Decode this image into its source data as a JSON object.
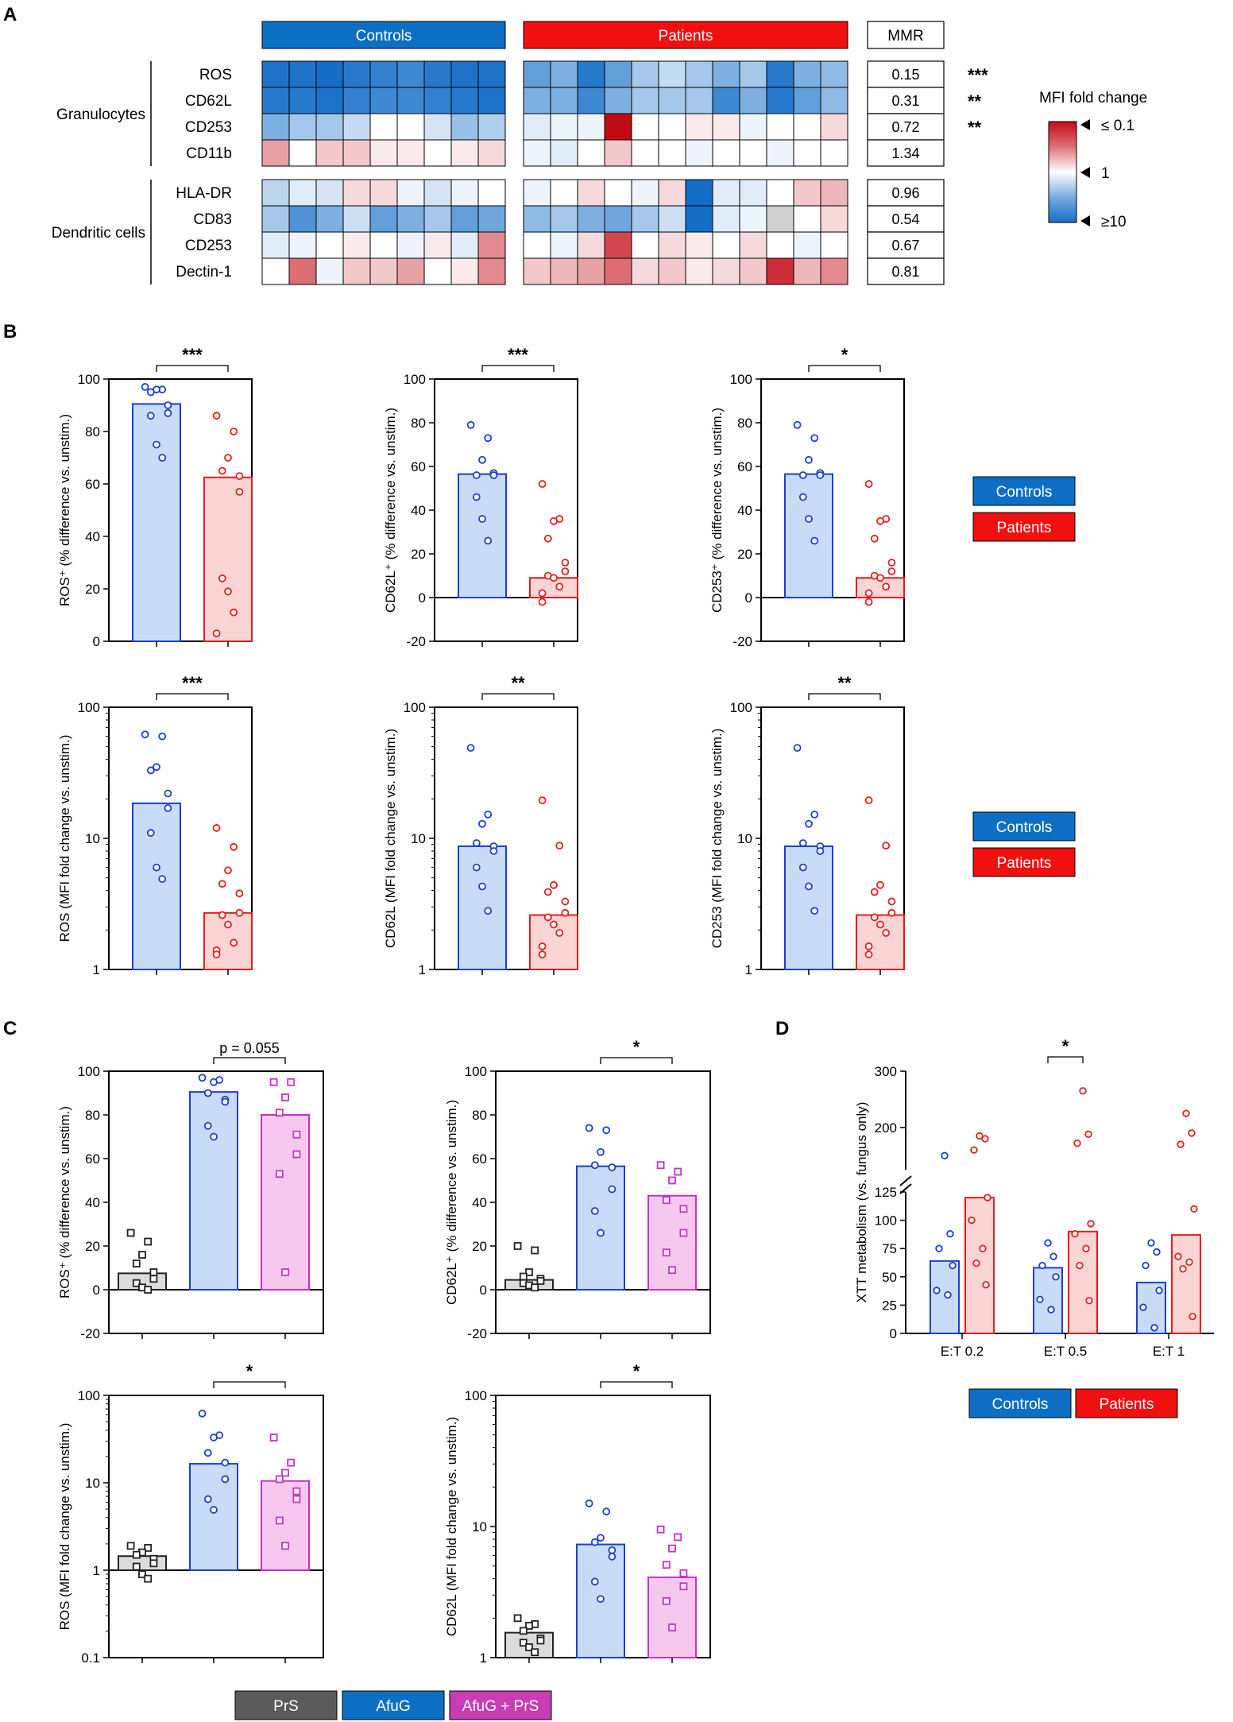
{
  "colors": {
    "controls": "#1a3fd6",
    "controls_fill": "#c9dcf7",
    "controls_label": "#0d6fc4",
    "patients": "#e01f1f",
    "patients_fill": "#fbd4d4",
    "patients_label": "#f01010",
    "prs": "#222222",
    "prs_fill": "#dcdcdc",
    "prs_label": "#5a5a5a",
    "afug_prs": "#c82ec8",
    "afug_prs_fill": "#f6c8ee",
    "afug_prs_label": "#c83cb4"
  },
  "panel_labels": [
    "A",
    "B",
    "C",
    "D"
  ],
  "heatmap": {
    "controls_label": "Controls",
    "patients_label": "Patients",
    "mmr_label": "MMR",
    "scale_title": "MFI fold change",
    "scale_labels": [
      "≤ 0.1",
      "1",
      "≥10"
    ],
    "groups": [
      {
        "name": "Granulocytes",
        "markers": [
          "ROS",
          "CD62L",
          "CD253",
          "CD11b"
        ],
        "mmr": [
          "0.15",
          "0.31",
          "0.72",
          "1.34"
        ],
        "sig": [
          "***",
          "**",
          "**",
          ""
        ]
      },
      {
        "name": "Dendritic cells",
        "markers": [
          "HLA-DR",
          "CD83",
          "CD253",
          "Dectin-1"
        ],
        "mmr": [
          "0.96",
          "0.54",
          "0.67",
          "0.81"
        ],
        "sig": [
          "",
          "",
          "",
          ""
        ]
      }
    ],
    "controls_values": [
      [
        9,
        9,
        10,
        8,
        7,
        6,
        8,
        9,
        9
      ],
      [
        8,
        8,
        9,
        7,
        6,
        6,
        7,
        8,
        9
      ],
      [
        3,
        2,
        2,
        1.5,
        1,
        1,
        1.3,
        2.3,
        1.8
      ],
      [
        0.5,
        1,
        0.7,
        0.7,
        0.9,
        0.9,
        1,
        0.9,
        0.8
      ],
      [
        1.6,
        1.2,
        1.3,
        0.8,
        0.8,
        1.1,
        1.3,
        1.1,
        1
      ],
      [
        2,
        5,
        3,
        1.4,
        4,
        3,
        2,
        4,
        3.5
      ],
      [
        1.2,
        1.1,
        1,
        0.9,
        1,
        1.1,
        0.9,
        1.2,
        0.4
      ],
      [
        1,
        0.3,
        1.1,
        0.7,
        0.7,
        0.5,
        1,
        0.9,
        0.4
      ]
    ],
    "patients_values": [
      [
        4,
        3,
        8,
        4,
        2,
        1.5,
        2,
        3,
        2,
        8,
        3,
        2.5
      ],
      [
        3,
        3,
        6,
        3,
        2,
        2,
        2,
        6,
        3,
        8,
        4,
        2.5
      ],
      [
        1.2,
        1.1,
        1.1,
        0.1,
        1,
        1,
        0.9,
        0.9,
        1.1,
        1,
        1,
        0.8
      ],
      [
        1.1,
        1.2,
        1,
        0.7,
        1,
        1,
        1.1,
        1,
        1,
        1.1,
        1,
        1
      ],
      [
        1.1,
        1,
        0.8,
        1,
        1.1,
        0.8,
        10,
        1.2,
        1.2,
        1,
        0.7,
        0.6
      ],
      [
        2.5,
        2,
        3,
        3.5,
        2,
        1.4,
        10,
        1.2,
        1.1,
        null,
        1,
        0.8
      ],
      [
        1,
        1.1,
        0.8,
        0.2,
        1,
        0.8,
        0.9,
        1,
        0.8,
        1,
        1.1,
        1
      ],
      [
        0.7,
        0.6,
        0.5,
        0.3,
        0.8,
        0.7,
        0.9,
        0.8,
        0.7,
        0.15,
        0.6,
        0.4
      ]
    ]
  },
  "legends": {
    "ctrl_pat": [
      "Controls",
      "Patients"
    ],
    "treatment": [
      "PrS",
      "AfuG",
      "AfuG + PrS"
    ]
  },
  "chart_data": [
    {
      "id": "B1",
      "type": "bar",
      "scale": "linear",
      "ylim": [
        0,
        100
      ],
      "yticks": [
        0,
        20,
        40,
        60,
        80,
        100
      ],
      "ylabel": "ROS⁺ (% difference vs. unstim.)",
      "categories": [
        "Controls",
        "Patients"
      ],
      "bars": [
        90.5,
        62.5
      ],
      "points": [
        [
          97,
          96,
          96,
          95,
          90,
          87,
          86,
          75,
          70
        ],
        [
          86,
          80,
          70,
          65,
          63,
          57,
          24,
          19,
          11,
          3
        ]
      ],
      "sig": "***"
    },
    {
      "id": "B2",
      "type": "bar",
      "scale": "linear",
      "ylim": [
        -20,
        100
      ],
      "yticks": [
        -20,
        0,
        20,
        40,
        60,
        80,
        100
      ],
      "ylabel": "CD62L⁺ (% difference vs. unstim.)",
      "categories": [
        "Controls",
        "Patients"
      ],
      "bars": [
        56.5,
        9
      ],
      "points": [
        [
          79,
          73,
          63,
          56,
          57,
          56,
          46,
          36,
          26
        ],
        [
          52,
          36,
          35,
          27,
          16,
          12,
          10,
          9,
          5,
          2,
          -2
        ]
      ],
      "sig": "***"
    },
    {
      "id": "B3",
      "type": "bar",
      "scale": "linear",
      "ylim": [
        -20,
        100
      ],
      "yticks": [
        -20,
        0,
        20,
        40,
        60,
        80,
        100
      ],
      "ylabel": "CD253⁺ (% difference vs. unstim.)",
      "categories": [
        "Controls",
        "Patients"
      ],
      "bars": [
        56.5,
        9
      ],
      "points": [
        [
          79,
          73,
          63,
          56,
          57,
          56,
          46,
          36,
          26
        ],
        [
          52,
          36,
          35,
          27,
          16,
          12,
          10,
          9,
          5,
          2,
          -2
        ]
      ],
      "sig": "*"
    },
    {
      "id": "B4",
      "type": "bar",
      "scale": "log",
      "ylim": [
        1,
        100
      ],
      "yticks": [
        1,
        10,
        100
      ],
      "ylabel": "ROS (MFI fold change vs. unstim.)",
      "categories": [
        "Controls",
        "Patients"
      ],
      "bars": [
        18.5,
        2.7
      ],
      "points": [
        [
          62,
          60,
          35,
          33,
          22,
          17,
          11,
          6,
          4.9
        ],
        [
          12,
          8.6,
          5.7,
          4.5,
          3.8,
          2.7,
          2.6,
          2.2,
          1.6,
          1.4,
          1.3
        ]
      ],
      "sig": "***"
    },
    {
      "id": "B5",
      "type": "bar",
      "scale": "log",
      "ylim": [
        1,
        100
      ],
      "yticks": [
        1,
        10,
        100
      ],
      "ylabel": "CD62L (MFI fold change vs. unstim.)",
      "categories": [
        "Controls",
        "Patients"
      ],
      "bars": [
        8.7,
        2.6
      ],
      "points": [
        [
          49,
          15.2,
          12.9,
          9.2,
          8.7,
          8,
          6,
          4.3,
          2.8
        ],
        [
          19.5,
          8.8,
          4.4,
          3.9,
          3.3,
          2.7,
          2.5,
          2.2,
          1.9,
          1.5,
          1.3
        ]
      ],
      "sig": "**"
    },
    {
      "id": "B6",
      "type": "bar",
      "scale": "log",
      "ylim": [
        1,
        100
      ],
      "yticks": [
        1,
        10,
        100
      ],
      "ylabel": "CD253 (MFI fold change vs. unstim.)",
      "categories": [
        "Controls",
        "Patients"
      ],
      "bars": [
        8.7,
        2.6
      ],
      "points": [
        [
          49,
          15.2,
          12.9,
          9.2,
          8.7,
          8,
          6,
          4.3,
          2.8
        ],
        [
          19.5,
          8.8,
          4.4,
          3.9,
          3.3,
          2.7,
          2.5,
          2.2,
          1.9,
          1.5,
          1.3
        ]
      ],
      "sig": "**"
    },
    {
      "id": "C1",
      "type": "bar",
      "scale": "linear",
      "ylim": [
        -20,
        100
      ],
      "yticks": [
        -20,
        0,
        20,
        40,
        60,
        80,
        100
      ],
      "ylabel": "ROS⁺ (% difference vs. unstim.)",
      "categories": [
        "PrS",
        "AfuG",
        "AfuG + PrS"
      ],
      "bars": [
        7.5,
        90.5,
        80
      ],
      "points": [
        [
          26,
          22,
          16,
          12,
          8,
          5,
          3,
          1,
          0
        ],
        [
          97,
          96,
          95,
          90,
          87,
          86,
          75,
          70
        ],
        [
          95,
          95,
          88,
          81,
          71,
          62,
          53,
          8
        ]
      ],
      "sig": "p = 0.055",
      "sig_pair": [
        1,
        2
      ]
    },
    {
      "id": "C2",
      "type": "bar",
      "scale": "linear",
      "ylim": [
        -20,
        100
      ],
      "yticks": [
        -20,
        0,
        20,
        40,
        60,
        80,
        100
      ],
      "ylabel": "CD62L⁺ (% difference vs. unstim.)",
      "categories": [
        "PrS",
        "AfuG",
        "AfuG + PrS"
      ],
      "bars": [
        4.5,
        56.5,
        43
      ],
      "points": [
        [
          20,
          18,
          8,
          6,
          5,
          4,
          3,
          2,
          1
        ],
        [
          74,
          73,
          63,
          57,
          56,
          46,
          36,
          26
        ],
        [
          57,
          54,
          50,
          41,
          37,
          26,
          17,
          9
        ]
      ],
      "sig": "*",
      "sig_pair": [
        1,
        2
      ]
    },
    {
      "id": "C3",
      "type": "bar",
      "scale": "log",
      "ylim": [
        0.1,
        100
      ],
      "yticks": [
        0.1,
        1,
        10,
        100
      ],
      "ylabel": "ROS (MFI fold change vs. unstim.)",
      "categories": [
        "PrS",
        "AfuG",
        "AfuG + PrS"
      ],
      "bars": [
        1.45,
        16.5,
        10.5
      ],
      "points": [
        [
          1.9,
          1.8,
          1.6,
          1.5,
          1.35,
          1.2,
          1.1,
          0.9,
          0.8
        ],
        [
          62,
          35,
          33,
          22,
          17,
          11,
          6.5,
          4.9
        ],
        [
          33,
          17,
          13,
          11,
          8,
          6.5,
          3.7,
          1.9
        ]
      ],
      "sig": "*",
      "sig_pair": [
        1,
        2
      ]
    },
    {
      "id": "C4",
      "type": "bar",
      "scale": "log",
      "ylim": [
        1,
        100
      ],
      "yticks": [
        1,
        10,
        100
      ],
      "ylabel": "CD62L (MFI fold change vs. unstim.)",
      "categories": [
        "PrS",
        "AfuG",
        "AfuG + PrS"
      ],
      "bars": [
        1.55,
        7.3,
        4.1
      ],
      "points": [
        [
          2,
          1.8,
          1.75,
          1.6,
          1.4,
          1.35,
          1.3,
          1.2,
          1.1
        ],
        [
          15,
          13,
          8.2,
          7.6,
          6.6,
          5.9,
          3.8,
          2.8
        ],
        [
          9.5,
          8.3,
          6.8,
          5.1,
          4.4,
          3.5,
          2.7,
          1.7
        ]
      ],
      "sig": "*",
      "sig_pair": [
        1,
        2
      ]
    },
    {
      "id": "D",
      "type": "bar",
      "scale": "broken",
      "ylim": [
        0,
        300
      ],
      "yticks": [
        0,
        25,
        50,
        75,
        100,
        125,
        200,
        300
      ],
      "ylabel": "XTT metabolism (vs. fungus only)",
      "categories": [
        "E:T 0.2",
        "E:T 0.5",
        "E:T 1"
      ],
      "series": [
        {
          "name": "Controls",
          "bars": [
            64,
            58,
            45
          ],
          "points": [
            [
              150,
              88,
              75,
              60,
              38,
              34
            ],
            [
              80,
              68,
              60,
              50,
              30,
              21
            ],
            [
              80,
              72,
              60,
              38,
              23,
              5
            ]
          ]
        },
        {
          "name": "Patients",
          "bars": [
            120,
            90,
            87
          ],
          "points": [
            [
              185,
              180,
              160,
              120,
              100,
              75,
              62,
              43
            ],
            [
              265,
              188,
              172,
              97,
              88,
              75,
              60,
              29
            ],
            [
              225,
              190,
              170,
              110,
              68,
              63,
              57,
              15
            ]
          ]
        }
      ],
      "sig": "*",
      "sig_category": 1
    }
  ]
}
